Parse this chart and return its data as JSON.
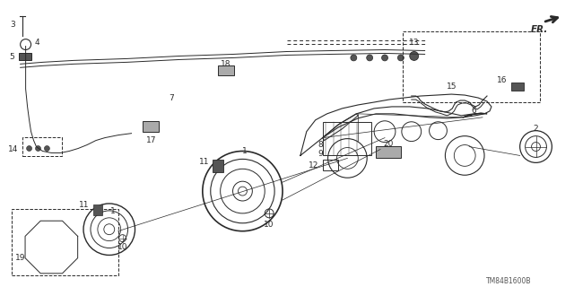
{
  "background_color": "#ffffff",
  "diagram_id": "TM84B1600B",
  "line_color": "#2a2a2a",
  "gray_fill": "#888888",
  "light_gray": "#cccccc",
  "dark_gray": "#444444"
}
